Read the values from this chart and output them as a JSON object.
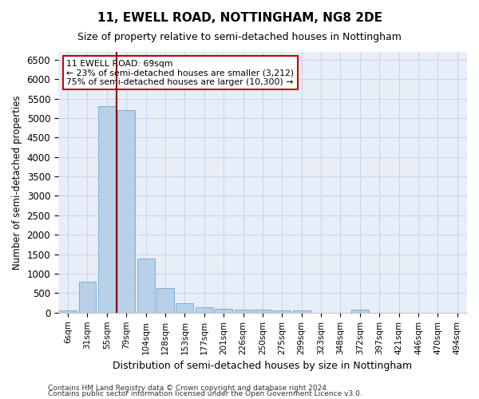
{
  "title": "11, EWELL ROAD, NOTTINGHAM, NG8 2DE",
  "subtitle": "Size of property relative to semi-detached houses in Nottingham",
  "xlabel": "Distribution of semi-detached houses by size in Nottingham",
  "ylabel": "Number of semi-detached properties",
  "footnote1": "Contains HM Land Registry data © Crown copyright and database right 2024.",
  "footnote2": "Contains public sector information licensed under the Open Government Licence v3.0.",
  "annotation_title": "11 EWELL ROAD: 69sqm",
  "annotation_line1": "← 23% of semi-detached houses are smaller (3,212)",
  "annotation_line2": "75% of semi-detached houses are larger (10,300) →",
  "bar_categories": [
    "6sqm",
    "31sqm",
    "55sqm",
    "79sqm",
    "104sqm",
    "128sqm",
    "153sqm",
    "177sqm",
    "201sqm",
    "226sqm",
    "250sqm",
    "275sqm",
    "299sqm",
    "323sqm",
    "348sqm",
    "372sqm",
    "397sqm",
    "421sqm",
    "446sqm",
    "470sqm",
    "494sqm"
  ],
  "bar_values": [
    50,
    790,
    5300,
    5200,
    1400,
    630,
    250,
    130,
    90,
    70,
    70,
    60,
    60,
    0,
    0,
    80,
    0,
    0,
    0,
    0,
    0
  ],
  "bar_color": "#b8d0e8",
  "bar_edge_color": "#7aafd4",
  "grid_color": "#c8d4e8",
  "background_color": "#e8eef8",
  "vline_color": "#8b0000",
  "vline_x_index": 2.5,
  "box_color": "#cc0000",
  "ylim": [
    0,
    6700
  ],
  "yticks": [
    0,
    500,
    1000,
    1500,
    2000,
    2500,
    3000,
    3500,
    4000,
    4500,
    5000,
    5500,
    6000,
    6500
  ]
}
